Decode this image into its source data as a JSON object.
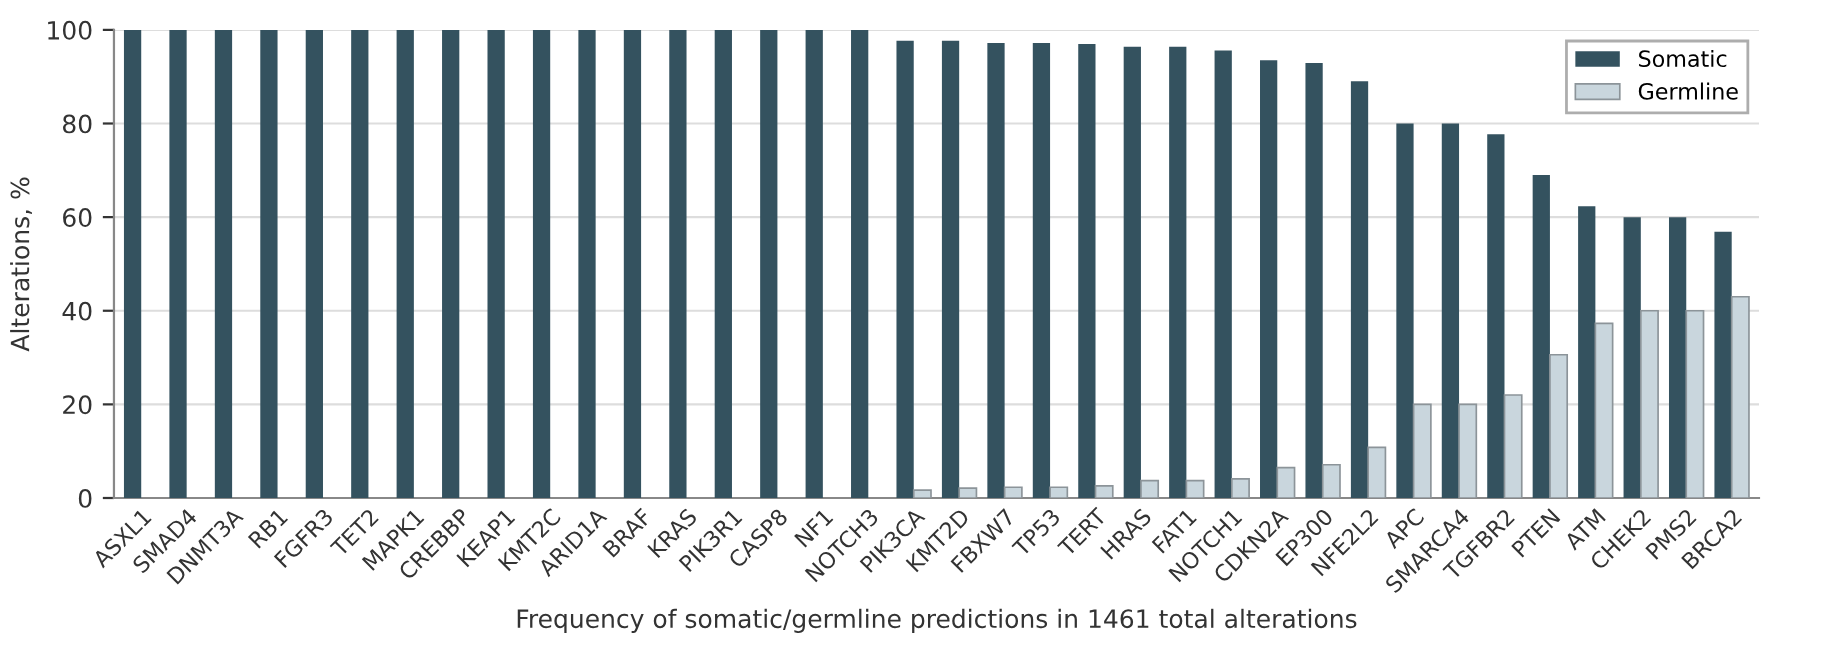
{
  "chart_data": {
    "type": "bar",
    "xlabel": "Frequency of somatic/germline predictions in 1461 total alterations",
    "ylabel": "Alterations, %",
    "categories": [
      "ASXL1",
      "SMAD4",
      "DNMT3A",
      "RB1",
      "FGFR3",
      "TET2",
      "MAPK1",
      "CREBBP",
      "KEAP1",
      "KMT2C",
      "ARID1A",
      "BRAF",
      "KRAS",
      "PIK3R1",
      "CASP8",
      "NF1",
      "NOTCH3",
      "PIK3CA",
      "KMT2D",
      "FBXW7",
      "TP53",
      "TERT",
      "HRAS",
      "FAT1",
      "NOTCH1",
      "CDKN2A",
      "EP300",
      "NFE2L2",
      "APC",
      "SMARCA4",
      "TGFBR2",
      "PTEN",
      "ATM",
      "CHEK2",
      "PMS2",
      "BRCA2"
    ],
    "series": [
      {
        "name": "Somatic",
        "color": "#34525f",
        "values": [
          100,
          100,
          100,
          100,
          100,
          100,
          100,
          100,
          100,
          100,
          100,
          100,
          100,
          100,
          100,
          100,
          100,
          97.7,
          97.7,
          97.2,
          97.2,
          97.0,
          96.4,
          96.4,
          95.6,
          93.5,
          92.9,
          89.0,
          80,
          80,
          77.7,
          69.0,
          62.3,
          60,
          60,
          56.9
        ]
      },
      {
        "name": "Germline",
        "color": "#c9d6dd",
        "values": [
          null,
          null,
          null,
          null,
          null,
          null,
          null,
          null,
          null,
          null,
          null,
          null,
          null,
          null,
          null,
          null,
          null,
          1.7,
          2.1,
          2.3,
          2.3,
          2.6,
          3.7,
          3.7,
          4.1,
          6.5,
          7.1,
          10.8,
          20,
          20,
          22.0,
          30.6,
          37.3,
          40,
          40,
          43.0
        ]
      }
    ],
    "ylim": [
      0,
      100
    ],
    "yticks": [
      0,
      20,
      40,
      60,
      80,
      100
    ],
    "grid": "y",
    "legend": "top right"
  }
}
